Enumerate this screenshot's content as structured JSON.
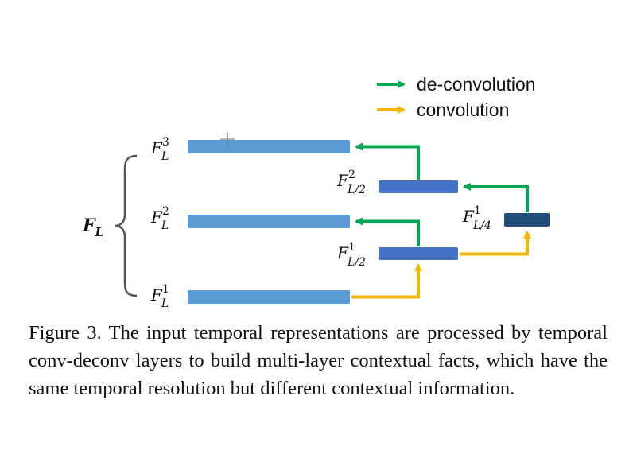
{
  "legend": {
    "items": [
      {
        "label": "de-convolution",
        "color": "#00A651"
      },
      {
        "label": "convolution",
        "color": "#F5B800"
      }
    ]
  },
  "group_label": {
    "base": "F",
    "sub": "L"
  },
  "colors": {
    "layer_bar": "#5B9BD5",
    "half_bar": "#4472C4",
    "quarter_bar": "#1F4E79",
    "brace": "#555555",
    "deconv_arrow": "#00A651",
    "conv_arrow": "#F5B800"
  },
  "features": {
    "fl3": {
      "base": "F",
      "sub": "L",
      "sup": "3"
    },
    "fl2": {
      "base": "F",
      "sub": "L",
      "sup": "2"
    },
    "fl1": {
      "base": "F",
      "sub": "L",
      "sup": "1"
    },
    "fl2_2": {
      "base": "F",
      "sub": "L/2",
      "sup": "2"
    },
    "fl2_1": {
      "base": "F",
      "sub": "L/2",
      "sup": "1"
    },
    "fl4_1": {
      "base": "F",
      "sub": "L/4",
      "sup": "1"
    }
  },
  "caption": "Figure 3. The input temporal representations are processed by temporal conv-deconv layers to build multi-layer contextual facts, which have the same temporal resolution but different contextual information."
}
